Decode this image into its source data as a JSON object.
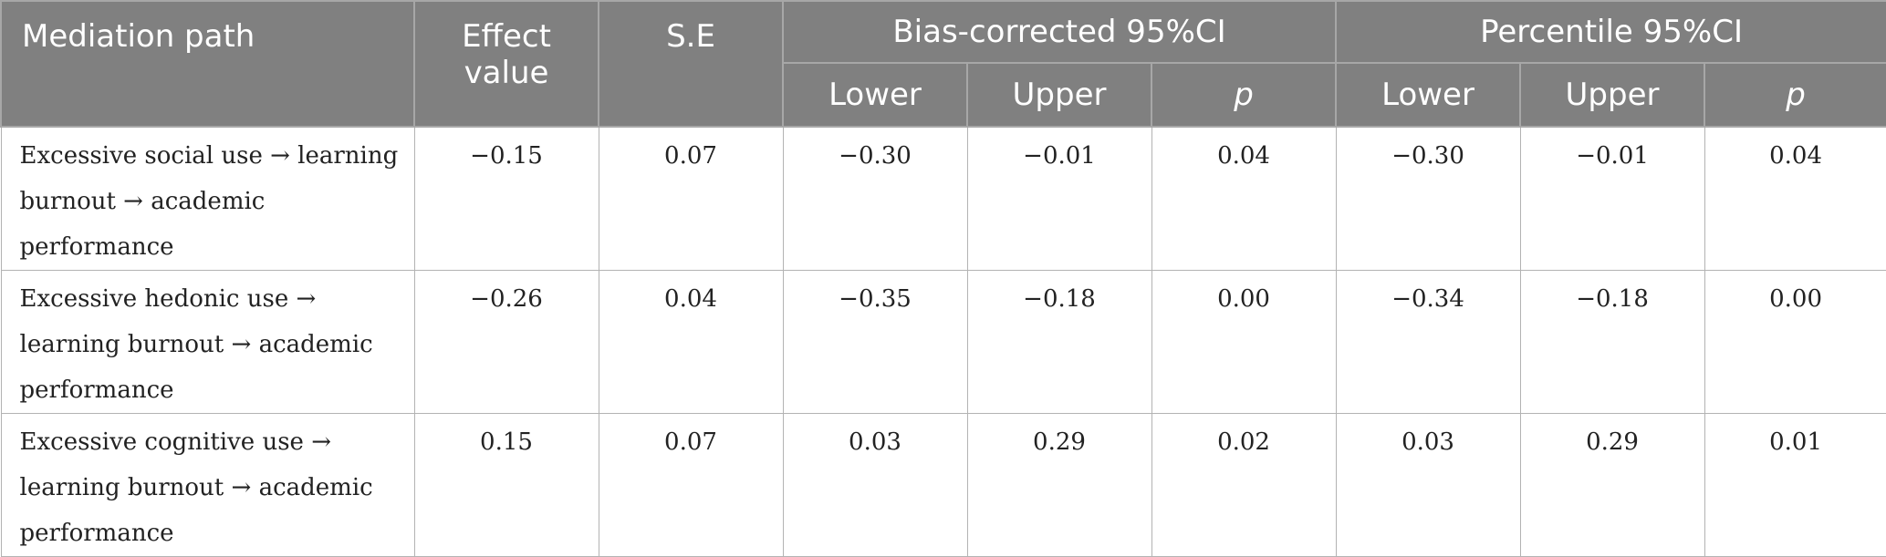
{
  "table": {
    "header": {
      "mediation_path": "Mediation path",
      "effect_value": "Effect value",
      "se": "S.E",
      "bias_corrected": "Bias-corrected 95%CI",
      "percentile": "Percentile 95%CI",
      "lower": "Lower",
      "upper": "Upper",
      "p": "p"
    },
    "rows": [
      {
        "path": "Excessive social use → learning burnout → academic performance",
        "effect": "−0.15",
        "se": "0.07",
        "bc_lower": "−0.30",
        "bc_upper": "−0.01",
        "bc_p": "0.04",
        "pc_lower": "−0.30",
        "pc_upper": "−0.01",
        "pc_p": "0.04"
      },
      {
        "path": "Excessive hedonic use → learning burnout → academic performance",
        "effect": "−0.26",
        "se": "0.04",
        "bc_lower": "−0.35",
        "bc_upper": "−0.18",
        "bc_p": "0.00",
        "pc_lower": "−0.34",
        "pc_upper": "−0.18",
        "pc_p": "0.00"
      },
      {
        "path": "Excessive cognitive use → learning burnout → academic performance",
        "effect": "0.15",
        "se": "0.07",
        "bc_lower": "0.03",
        "bc_upper": "0.29",
        "bc_p": "0.02",
        "pc_lower": "0.03",
        "pc_upper": "0.29",
        "pc_p": "0.01"
      }
    ]
  }
}
